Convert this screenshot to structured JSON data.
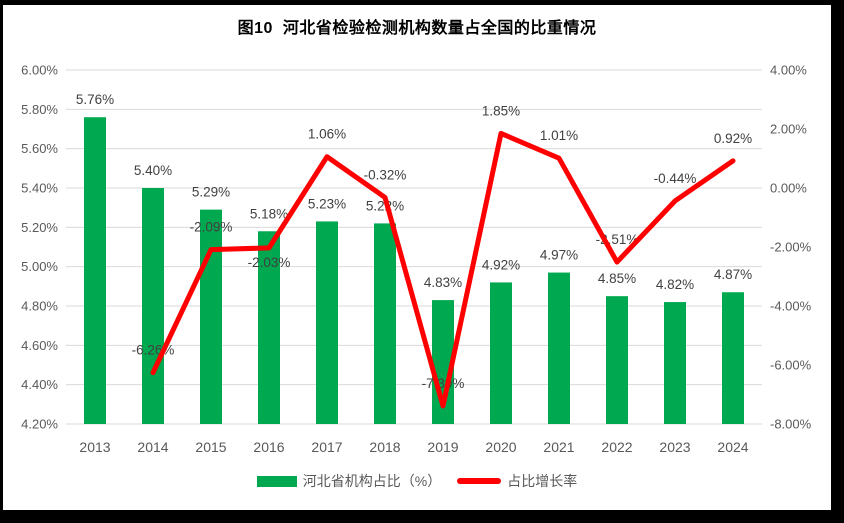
{
  "title": "图10  河北省检验检测机构数量占全国的比重情况",
  "legend": {
    "bar": {
      "label": "河北省机构占比（%）",
      "color": "#00A84F"
    },
    "line": {
      "label": "占比增长率",
      "color": "#FF0000"
    }
  },
  "chart_data": {
    "type": "bar+line",
    "title": "图10  河北省检验检测机构数量占全国的比重情况",
    "categories": [
      "2013",
      "2014",
      "2015",
      "2016",
      "2017",
      "2018",
      "2019",
      "2020",
      "2021",
      "2022",
      "2023",
      "2024"
    ],
    "series": [
      {
        "name": "河北省机构占比（%）",
        "type": "bar",
        "axis": "left",
        "color": "#00A84F",
        "values": [
          5.76,
          5.4,
          5.29,
          5.18,
          5.23,
          5.22,
          4.83,
          4.92,
          4.97,
          4.85,
          4.82,
          4.87
        ],
        "data_labels": [
          "5.76%",
          "5.40%",
          "5.29%",
          "5.18%",
          "5.23%",
          "5.22%",
          "4.83%",
          "4.92%",
          "4.97%",
          "4.85%",
          "4.82%",
          "4.87%"
        ]
      },
      {
        "name": "占比增长率",
        "type": "line",
        "axis": "right",
        "color": "#FF0000",
        "values": [
          null,
          -6.26,
          -2.09,
          -2.03,
          1.06,
          -0.32,
          -7.39,
          1.85,
          1.01,
          -2.51,
          -0.44,
          0.92
        ],
        "data_labels": [
          null,
          "-6.26%",
          "-2.09%",
          "-2.03%",
          "1.06%",
          "-0.32%",
          "-7.39%",
          "1.85%",
          "1.01%",
          "-2.51%",
          "-0.44%",
          "0.92%"
        ],
        "label_placement": [
          null,
          "above",
          "above",
          "below",
          "above",
          "above",
          "above",
          "above",
          "above",
          "above",
          "above",
          "above"
        ]
      }
    ],
    "left_axis": {
      "min": 4.2,
      "max": 6.0,
      "step": 0.2,
      "ticks": [
        "6.00%",
        "5.80%",
        "5.60%",
        "5.40%",
        "5.20%",
        "5.00%",
        "4.80%",
        "4.60%",
        "4.40%",
        "4.20%"
      ]
    },
    "right_axis": {
      "min": -8.0,
      "max": 4.0,
      "step": 2.0,
      "ticks": [
        "4.00%",
        "2.00%",
        "0.00%",
        "-2.00%",
        "-4.00%",
        "-6.00%",
        "-8.00%"
      ]
    },
    "grid": true,
    "legend_position": "bottom",
    "colors": {
      "grid": "#D9D9D9",
      "axis_text": "#595959",
      "data_label_text": "#404040",
      "title_text": "#000000"
    }
  }
}
